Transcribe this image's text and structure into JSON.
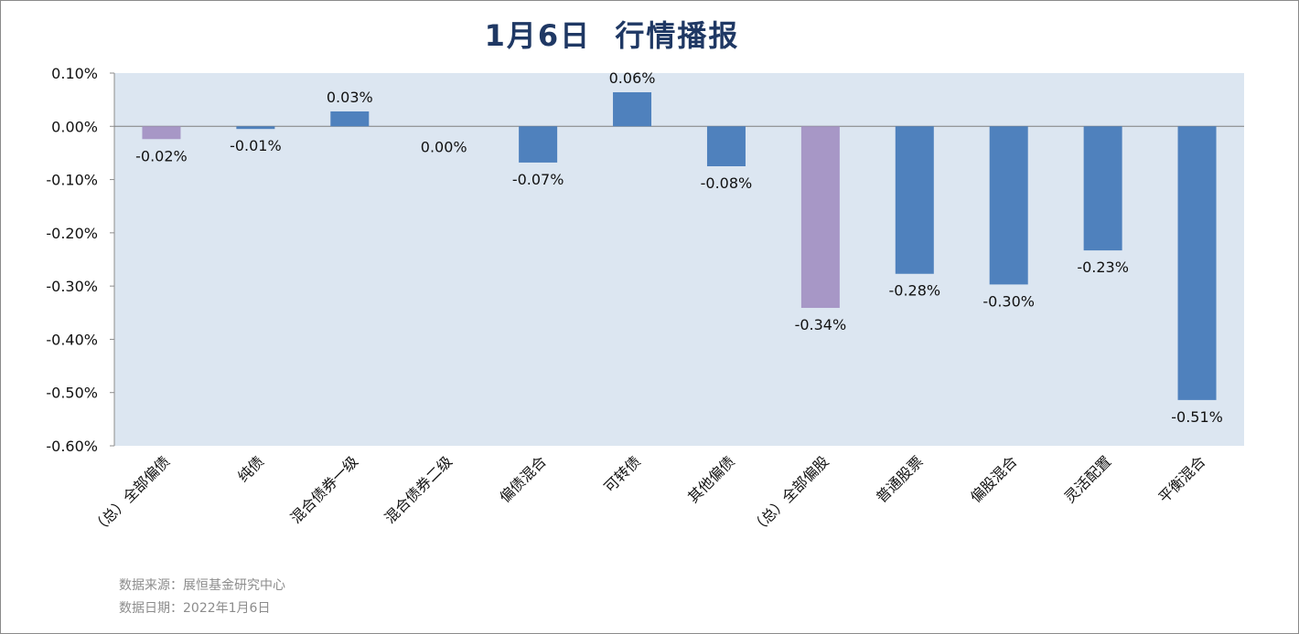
{
  "title": "1月6日  行情播报",
  "chart_data": {
    "type": "bar",
    "title": "1月6日  行情播报",
    "xlabel": "",
    "ylabel": "",
    "ylim": [
      -0.6,
      0.1
    ],
    "y_ticks": [
      "0.10%",
      "0.00%",
      "-0.10%",
      "-0.20%",
      "-0.30%",
      "-0.40%",
      "-0.50%",
      "-0.60%"
    ],
    "grid": false,
    "legend": "none",
    "categories": [
      "（总）全部偏债",
      "纯债",
      "混合债券一级",
      "混合债券二级",
      "偏债混合",
      "可转债",
      "其他偏债",
      "（总）全部偏股",
      "普通股票",
      "偏股混合",
      "灵活配置",
      "平衡混合"
    ],
    "values": [
      -0.024,
      -0.005,
      0.028,
      0.0,
      -0.068,
      0.064,
      -0.075,
      -0.341,
      -0.277,
      -0.297,
      -0.233,
      -0.514
    ],
    "data_labels": [
      "-0.02%",
      "-0.01%",
      "0.03%",
      "0.00%",
      "-0.07%",
      "0.06%",
      "-0.08%",
      "-0.34%",
      "-0.28%",
      "-0.30%",
      "-0.23%",
      "-0.51%"
    ],
    "bar_colors": [
      "#a797c6",
      "#4f81bd",
      "#4f81bd",
      "#4f81bd",
      "#4f81bd",
      "#4f81bd",
      "#4f81bd",
      "#a797c6",
      "#4f81bd",
      "#4f81bd",
      "#4f81bd",
      "#4f81bd"
    ],
    "plot_background": "#dce6f1"
  },
  "footer": {
    "source": "数据来源：展恒基金研究中心",
    "date": "数据日期：2022年1月6日"
  }
}
